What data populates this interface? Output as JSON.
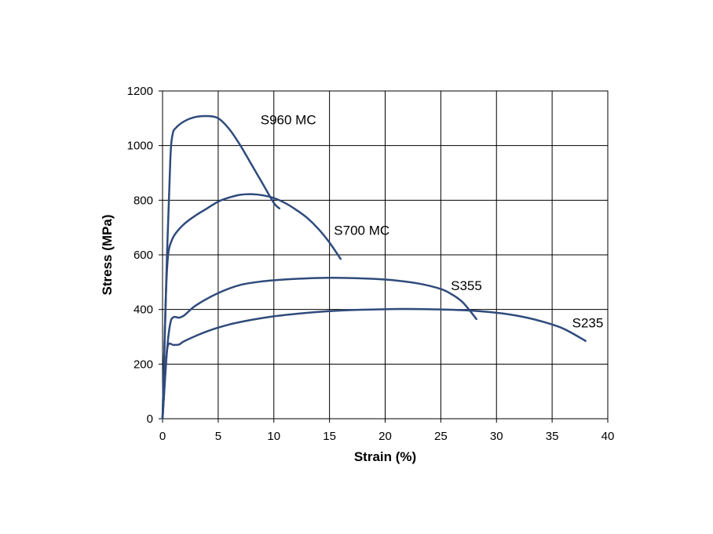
{
  "chart_data": {
    "type": "line",
    "title": "",
    "xlabel": "Strain (%)",
    "ylabel": "Stress (MPa)",
    "xlim": [
      0,
      40
    ],
    "ylim": [
      0,
      1200
    ],
    "xticks": [
      0,
      5,
      10,
      15,
      20,
      25,
      30,
      35,
      40
    ],
    "yticks": [
      0,
      200,
      400,
      600,
      800,
      1000,
      1200
    ],
    "grid": true,
    "legend": "none",
    "line_color": "#2f4b7c",
    "series": [
      {
        "name": "S960 MC",
        "x": [
          0,
          0.4,
          0.7,
          0.9,
          1.2,
          2.0,
          3.0,
          4.0,
          5.0,
          6.0,
          7.0,
          8.0,
          9.0,
          10.0,
          10.5
        ],
        "y": [
          0,
          600,
          950,
          1040,
          1065,
          1090,
          1105,
          1108,
          1100,
          1060,
          1000,
          930,
          860,
          790,
          770
        ]
      },
      {
        "name": "S700 MC",
        "x": [
          0,
          0.3,
          0.5,
          0.8,
          1.2,
          2.0,
          3.0,
          4.0,
          5.0,
          6.0,
          7.0,
          8.0,
          9.0,
          10.0,
          11.0,
          12.0,
          13.0,
          14.0,
          15.0,
          16.0
        ],
        "y": [
          0,
          450,
          600,
          650,
          680,
          715,
          745,
          770,
          795,
          810,
          820,
          822,
          818,
          808,
          790,
          765,
          735,
          695,
          645,
          585
        ]
      },
      {
        "name": "S355",
        "x": [
          0,
          0.4,
          0.7,
          1.0,
          1.5,
          2.0,
          3.0,
          5.0,
          7.0,
          9.0,
          11.0,
          13.0,
          15.0,
          17.0,
          19.0,
          21.0,
          23.0,
          25.0,
          26.0,
          27.0,
          28.2
        ],
        "y": [
          0,
          250,
          350,
          372,
          370,
          380,
          415,
          460,
          490,
          503,
          510,
          514,
          516,
          515,
          512,
          506,
          495,
          475,
          455,
          425,
          365
        ]
      },
      {
        "name": "S235",
        "x": [
          0,
          0.3,
          0.5,
          1.0,
          1.5,
          2.0,
          4.0,
          6.0,
          8.0,
          10.0,
          12.0,
          14.0,
          16.0,
          18.0,
          20.0,
          22.0,
          24.0,
          26.0,
          28.0,
          30.0,
          32.0,
          34.0,
          36.0,
          38.0
        ],
        "y": [
          0,
          200,
          270,
          270,
          272,
          285,
          320,
          345,
          362,
          375,
          384,
          391,
          396,
          399,
          401,
          402,
          401,
          399,
          395,
          388,
          376,
          357,
          330,
          285
        ]
      }
    ],
    "annotations": [
      {
        "text": "S960 MC",
        "x": 8.8,
        "y": 1095
      },
      {
        "text": "S700 MC",
        "x": 15.4,
        "y": 690
      },
      {
        "text": "S355",
        "x": 25.9,
        "y": 488
      },
      {
        "text": "S235",
        "x": 36.8,
        "y": 352
      }
    ]
  }
}
